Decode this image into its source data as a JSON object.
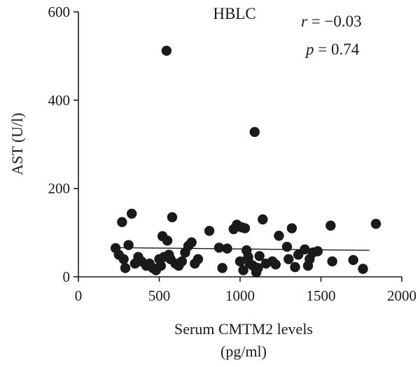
{
  "chart_data": {
    "type": "scatter",
    "title": "HBLC",
    "xlabel_line1": "Serum CMTM2 levels",
    "xlabel_line2": "(pg/ml)",
    "ylabel": "AST (U/l)",
    "xlim": [
      0,
      2000
    ],
    "ylim": [
      0,
      600
    ],
    "x_ticks": [
      0,
      500,
      1000,
      1500,
      2000
    ],
    "y_ticks": [
      0,
      200,
      400,
      600
    ],
    "x_tick_labels": [
      "0",
      "500",
      "1000",
      "1500",
      "2000"
    ],
    "y_tick_labels": [
      "0",
      "200",
      "400",
      "600"
    ],
    "annotation_r_symbol": "r",
    "annotation_r_value": " = −0.03",
    "annotation_p_symbol": "p",
    "annotation_p_value": " = 0.74",
    "grid": false,
    "fit_line": {
      "x": [
        240,
        1800
      ],
      "y": [
        66,
        60
      ]
    },
    "points": [
      [
        545,
        512
      ],
      [
        1090,
        328
      ],
      [
        230,
        65
      ],
      [
        250,
        50
      ],
      [
        270,
        124
      ],
      [
        280,
        40
      ],
      [
        290,
        20
      ],
      [
        310,
        72
      ],
      [
        330,
        143
      ],
      [
        350,
        30
      ],
      [
        370,
        45
      ],
      [
        390,
        35
      ],
      [
        420,
        25
      ],
      [
        440,
        30
      ],
      [
        460,
        20
      ],
      [
        480,
        15
      ],
      [
        500,
        40
      ],
      [
        510,
        25
      ],
      [
        520,
        92
      ],
      [
        530,
        45
      ],
      [
        550,
        82
      ],
      [
        560,
        50
      ],
      [
        570,
        40
      ],
      [
        580,
        135
      ],
      [
        600,
        30
      ],
      [
        620,
        25
      ],
      [
        640,
        35
      ],
      [
        660,
        55
      ],
      [
        680,
        70
      ],
      [
        700,
        78
      ],
      [
        720,
        30
      ],
      [
        740,
        40
      ],
      [
        810,
        104
      ],
      [
        870,
        66
      ],
      [
        890,
        20
      ],
      [
        920,
        64
      ],
      [
        960,
        108
      ],
      [
        980,
        118
      ],
      [
        1000,
        35
      ],
      [
        1010,
        112
      ],
      [
        1020,
        15
      ],
      [
        1030,
        110
      ],
      [
        1040,
        60
      ],
      [
        1050,
        45
      ],
      [
        1060,
        30
      ],
      [
        1080,
        25
      ],
      [
        1100,
        10
      ],
      [
        1110,
        20
      ],
      [
        1120,
        47
      ],
      [
        1140,
        130
      ],
      [
        1160,
        30
      ],
      [
        1200,
        35
      ],
      [
        1220,
        28
      ],
      [
        1240,
        93
      ],
      [
        1290,
        68
      ],
      [
        1300,
        40
      ],
      [
        1320,
        110
      ],
      [
        1340,
        22
      ],
      [
        1360,
        50
      ],
      [
        1400,
        62
      ],
      [
        1420,
        25
      ],
      [
        1430,
        40
      ],
      [
        1450,
        55
      ],
      [
        1480,
        58
      ],
      [
        1560,
        116
      ],
      [
        1570,
        35
      ],
      [
        1700,
        38
      ],
      [
        1760,
        18
      ],
      [
        1840,
        120
      ]
    ]
  }
}
